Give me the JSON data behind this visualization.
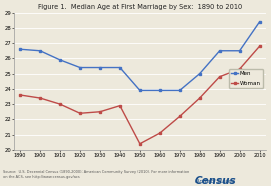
{
  "title": "Figure 1.  Median Age at First Marriage by Sex:  1890 to 2010",
  "years": [
    1890,
    1900,
    1910,
    1920,
    1930,
    1940,
    1950,
    1960,
    1970,
    1980,
    1990,
    2000,
    2010
  ],
  "men": [
    26.6,
    26.5,
    25.9,
    25.4,
    25.4,
    25.4,
    23.9,
    23.9,
    23.9,
    25.0,
    26.5,
    26.5,
    28.4
  ],
  "women": [
    23.6,
    23.4,
    23.0,
    22.4,
    22.5,
    22.9,
    20.4,
    21.1,
    22.2,
    23.4,
    24.8,
    25.3,
    26.8
  ],
  "men_color": "#4472c4",
  "women_color": "#be4b48",
  "bg_color": "#ede9dc",
  "plot_bg": "#ede9dc",
  "grid_color": "#ffffff",
  "ylim": [
    20,
    29
  ],
  "yticks": [
    20,
    21,
    22,
    23,
    24,
    25,
    26,
    27,
    28,
    29
  ],
  "source_text": "Source:  U.S. Decennial Census (1890-2000); American Community Survey (2010). For more information\non the ACS, see http://www.census.gov/acs",
  "legend_men": "Men",
  "legend_women": "Woman",
  "census_line1": "United States",
  "census_line2": "Census"
}
